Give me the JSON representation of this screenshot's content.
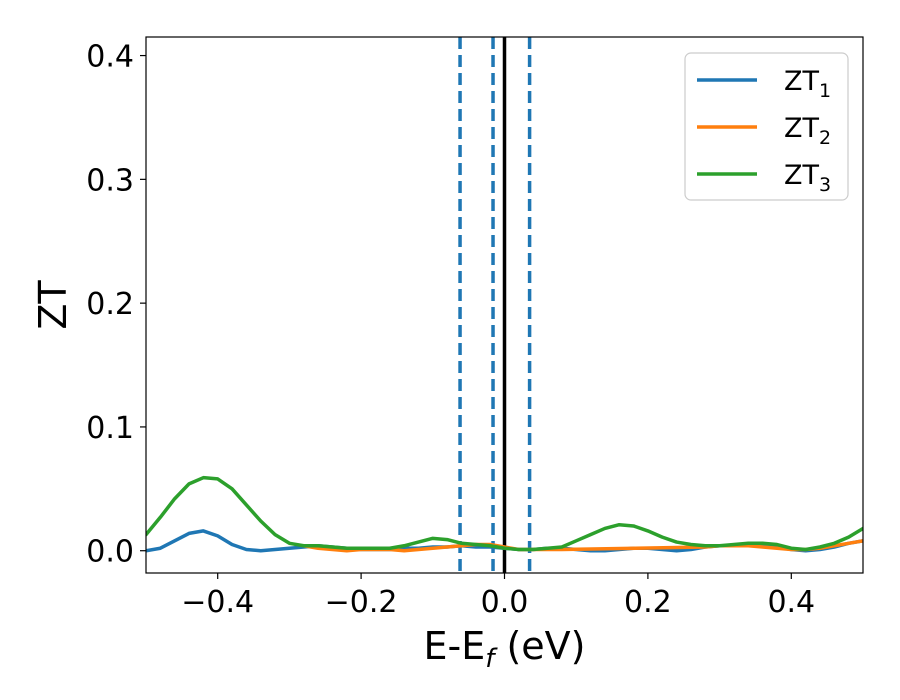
{
  "chart_data": {
    "type": "line",
    "xlabel": {
      "main": "E-E",
      "subscript": "f",
      "suffix": " (eV)"
    },
    "ylabel": "ZT",
    "xlim": [
      -0.5,
      0.5
    ],
    "ylim": [
      -0.018,
      0.415
    ],
    "xticks": [
      -0.4,
      -0.2,
      0.0,
      0.2,
      0.4
    ],
    "xtick_labels": [
      "−0.4",
      "−0.2",
      "0.0",
      "0.2",
      "0.4"
    ],
    "yticks": [
      0.0,
      0.1,
      0.2,
      0.3,
      0.4
    ],
    "ytick_labels": [
      "0.0",
      "0.1",
      "0.2",
      "0.3",
      "0.4"
    ],
    "grid": false,
    "legend_position": "top-right",
    "vlines": [
      {
        "x": 0.0,
        "style": "solid",
        "color": "#000000"
      },
      {
        "x": -0.062,
        "style": "dashed",
        "color": "#1f77b4"
      },
      {
        "x": -0.016,
        "style": "dashed",
        "color": "#1f77b4"
      },
      {
        "x": 0.035,
        "style": "dashed",
        "color": "#1f77b4"
      }
    ],
    "series": [
      {
        "name": "ZT",
        "subscript": "1",
        "color": "#1f77b4",
        "points": [
          [
            -0.5,
            0.0
          ],
          [
            -0.48,
            0.002
          ],
          [
            -0.46,
            0.008
          ],
          [
            -0.44,
            0.014
          ],
          [
            -0.42,
            0.016
          ],
          [
            -0.4,
            0.012
          ],
          [
            -0.38,
            0.005
          ],
          [
            -0.36,
            0.001
          ],
          [
            -0.34,
            0.0
          ],
          [
            -0.32,
            0.001
          ],
          [
            -0.3,
            0.002
          ],
          [
            -0.28,
            0.003
          ],
          [
            -0.26,
            0.004
          ],
          [
            -0.24,
            0.003
          ],
          [
            -0.22,
            0.002
          ],
          [
            -0.2,
            0.001
          ],
          [
            -0.18,
            0.001
          ],
          [
            -0.16,
            0.001
          ],
          [
            -0.14,
            0.002
          ],
          [
            -0.12,
            0.002
          ],
          [
            -0.1,
            0.003
          ],
          [
            -0.08,
            0.003
          ],
          [
            -0.06,
            0.004
          ],
          [
            -0.04,
            0.003
          ],
          [
            -0.02,
            0.003
          ],
          [
            0.0,
            0.002
          ],
          [
            0.02,
            0.001
          ],
          [
            0.04,
            0.001
          ],
          [
            0.06,
            0.002
          ],
          [
            0.08,
            0.002
          ],
          [
            0.1,
            0.001
          ],
          [
            0.12,
            0.0
          ],
          [
            0.14,
            0.0
          ],
          [
            0.16,
            0.001
          ],
          [
            0.18,
            0.002
          ],
          [
            0.2,
            0.002
          ],
          [
            0.22,
            0.001
          ],
          [
            0.24,
            0.0
          ],
          [
            0.26,
            0.001
          ],
          [
            0.28,
            0.003
          ],
          [
            0.3,
            0.004
          ],
          [
            0.32,
            0.004
          ],
          [
            0.34,
            0.004
          ],
          [
            0.36,
            0.004
          ],
          [
            0.38,
            0.003
          ],
          [
            0.4,
            0.001
          ],
          [
            0.42,
            0.0
          ],
          [
            0.44,
            0.001
          ],
          [
            0.46,
            0.003
          ],
          [
            0.48,
            0.006
          ],
          [
            0.5,
            0.008
          ]
        ]
      },
      {
        "name": "ZT",
        "subscript": "2",
        "color": "#ff7f0e",
        "points": [
          [
            -0.28,
            0.004
          ],
          [
            -0.26,
            0.002
          ],
          [
            -0.24,
            0.001
          ],
          [
            -0.22,
            0.0
          ],
          [
            -0.2,
            0.001
          ],
          [
            -0.18,
            0.001
          ],
          [
            -0.16,
            0.001
          ],
          [
            -0.14,
            0.0
          ],
          [
            -0.12,
            0.001
          ],
          [
            -0.1,
            0.002
          ],
          [
            -0.08,
            0.003
          ],
          [
            -0.06,
            0.004
          ],
          [
            -0.04,
            0.005
          ],
          [
            -0.02,
            0.005
          ],
          [
            0.0,
            0.003
          ],
          [
            0.02,
            0.001
          ],
          [
            0.04,
            0.001
          ],
          [
            0.06,
            0.001
          ],
          [
            0.08,
            0.001
          ],
          [
            0.28,
            0.003
          ],
          [
            0.3,
            0.004
          ],
          [
            0.32,
            0.004
          ],
          [
            0.34,
            0.004
          ],
          [
            0.36,
            0.003
          ],
          [
            0.38,
            0.002
          ],
          [
            0.4,
            0.001
          ],
          [
            0.42,
            0.001
          ],
          [
            0.44,
            0.002
          ],
          [
            0.46,
            0.004
          ],
          [
            0.48,
            0.006
          ],
          [
            0.5,
            0.008
          ]
        ]
      },
      {
        "name": "ZT",
        "subscript": "3",
        "color": "#2ca02c",
        "points": [
          [
            -0.5,
            0.013
          ],
          [
            -0.48,
            0.027
          ],
          [
            -0.46,
            0.042
          ],
          [
            -0.44,
            0.054
          ],
          [
            -0.42,
            0.059
          ],
          [
            -0.4,
            0.058
          ],
          [
            -0.38,
            0.05
          ],
          [
            -0.36,
            0.037
          ],
          [
            -0.34,
            0.024
          ],
          [
            -0.32,
            0.013
          ],
          [
            -0.3,
            0.006
          ],
          [
            -0.28,
            0.004
          ],
          [
            -0.26,
            0.004
          ],
          [
            -0.24,
            0.003
          ],
          [
            -0.22,
            0.002
          ],
          [
            -0.2,
            0.002
          ],
          [
            -0.18,
            0.002
          ],
          [
            -0.16,
            0.002
          ],
          [
            -0.14,
            0.004
          ],
          [
            -0.12,
            0.007
          ],
          [
            -0.1,
            0.01
          ],
          [
            -0.08,
            0.009
          ],
          [
            -0.06,
            0.006
          ],
          [
            -0.04,
            0.005
          ],
          [
            -0.02,
            0.004
          ],
          [
            0.0,
            0.002
          ],
          [
            0.02,
            0.001
          ],
          [
            0.04,
            0.001
          ],
          [
            0.06,
            0.002
          ],
          [
            0.08,
            0.003
          ],
          [
            0.1,
            0.008
          ],
          [
            0.12,
            0.013
          ],
          [
            0.14,
            0.018
          ],
          [
            0.16,
            0.021
          ],
          [
            0.18,
            0.02
          ],
          [
            0.2,
            0.016
          ],
          [
            0.22,
            0.011
          ],
          [
            0.24,
            0.007
          ],
          [
            0.26,
            0.005
          ],
          [
            0.28,
            0.004
          ],
          [
            0.3,
            0.004
          ],
          [
            0.32,
            0.005
          ],
          [
            0.34,
            0.006
          ],
          [
            0.36,
            0.006
          ],
          [
            0.38,
            0.005
          ],
          [
            0.4,
            0.002
          ],
          [
            0.42,
            0.001
          ],
          [
            0.44,
            0.003
          ],
          [
            0.46,
            0.006
          ],
          [
            0.48,
            0.011
          ],
          [
            0.5,
            0.018
          ]
        ]
      }
    ]
  }
}
